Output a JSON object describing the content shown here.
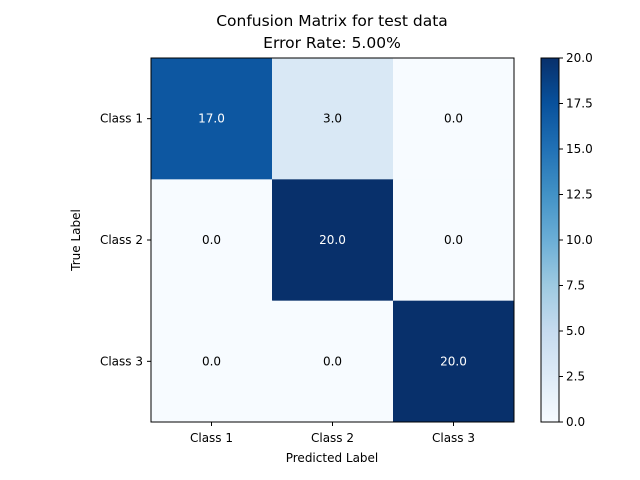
{
  "chart_data": {
    "type": "heatmap",
    "title": "Confusion Matrix for test data",
    "subtitle": "Error Rate: 5.00%",
    "xlabel": "Predicted Label",
    "ylabel": "True Label",
    "x_categories": [
      "Class 1",
      "Class 2",
      "Class 3"
    ],
    "y_categories": [
      "Class 1",
      "Class 2",
      "Class 3"
    ],
    "values": [
      [
        17.0,
        3.0,
        0.0
      ],
      [
        0.0,
        20.0,
        0.0
      ],
      [
        0.0,
        0.0,
        20.0
      ]
    ],
    "cell_labels": [
      [
        "17.0",
        "3.0",
        "0.0"
      ],
      [
        "0.0",
        "20.0",
        "0.0"
      ],
      [
        "0.0",
        "0.0",
        "20.0"
      ]
    ],
    "colormap": "Blues",
    "color_low": "#f7fbff",
    "color_high": "#08306b",
    "colorbar": {
      "range": [
        0,
        20
      ],
      "ticks": [
        "0.0",
        "2.5",
        "5.0",
        "7.5",
        "10.0",
        "12.5",
        "15.0",
        "17.5",
        "20.0"
      ]
    }
  }
}
